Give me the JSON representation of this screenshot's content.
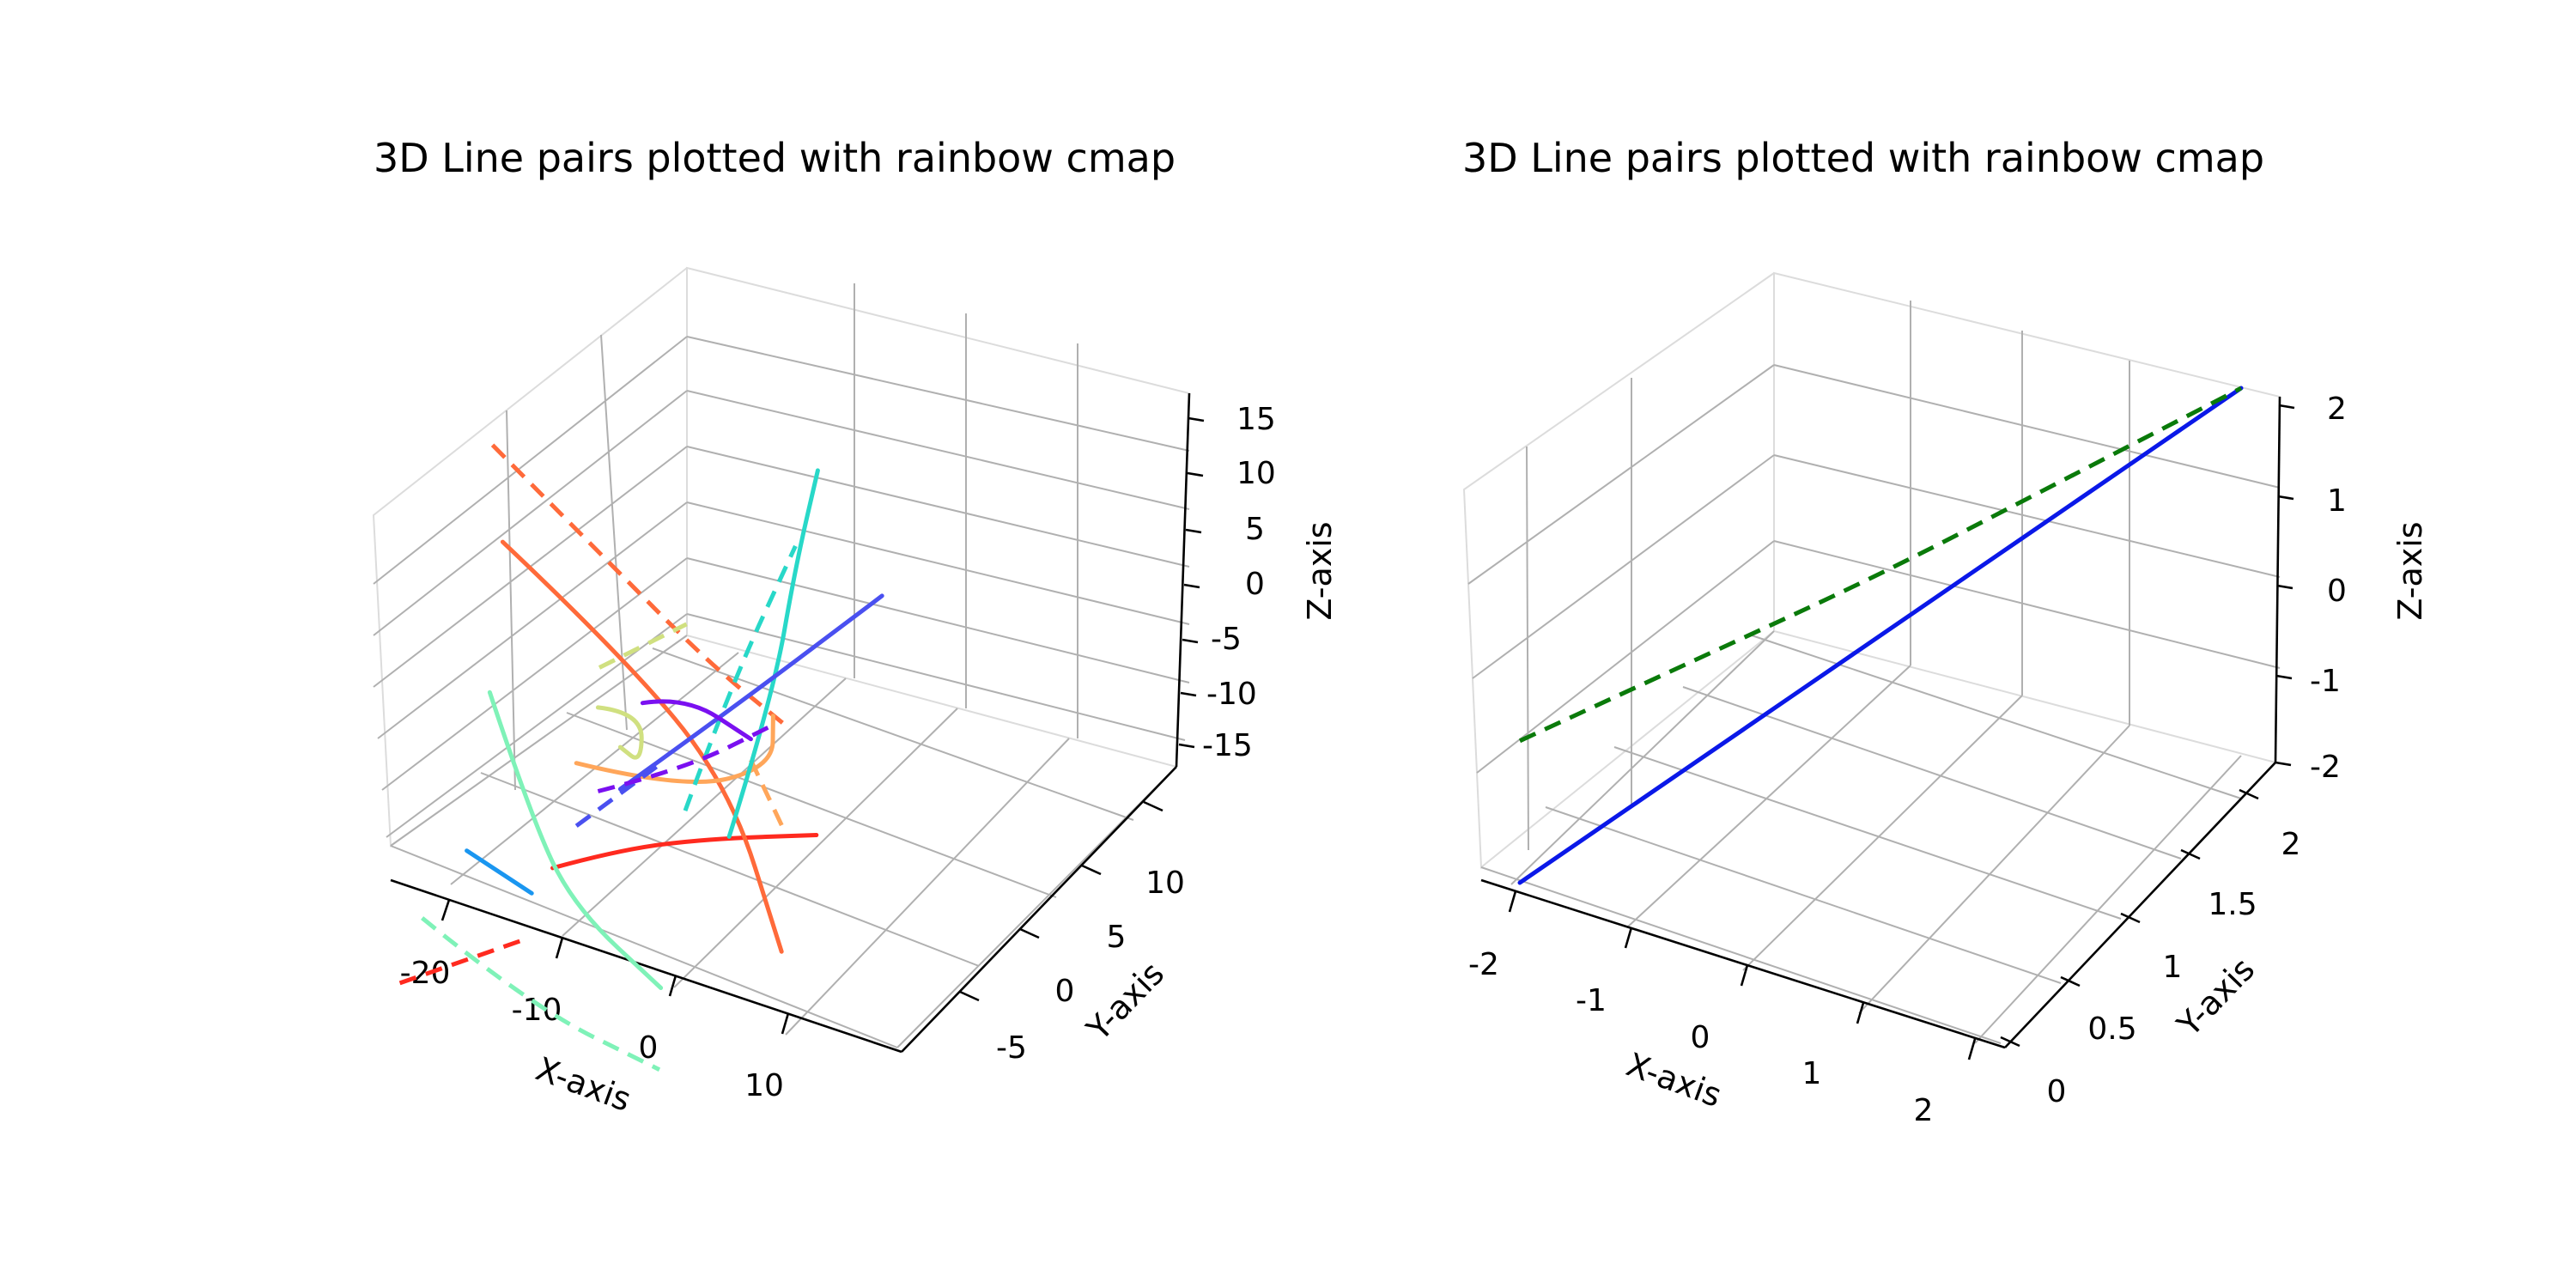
{
  "chart_data": [
    {
      "type": "line3d",
      "title": "3D Line pairs plotted with rainbow cmap",
      "xlabel": "X-axis",
      "ylabel": "Y-axis",
      "zlabel": "Z-axis",
      "xticks": [
        -20,
        -10,
        0,
        10
      ],
      "yticks": [
        -5,
        0,
        5,
        10
      ],
      "zticks": [
        15,
        10,
        5,
        0,
        -5,
        -10,
        -15
      ],
      "xlim": [
        -25,
        18
      ],
      "ylim": [
        -8,
        15
      ],
      "zlim": [
        -18,
        18
      ],
      "grid": true,
      "series": [
        {
          "color": "#ff2a1f",
          "style": "solid",
          "points": [
            [
              -4,
              -4,
              -6
            ],
            [
              -2,
              0,
              -8
            ],
            [
              2,
              4,
              -10
            ],
            [
              8,
              8,
              -12
            ]
          ]
        },
        {
          "color": "#ff2a1f",
          "style": "dashed",
          "points": [
            [
              -14,
              -8,
              -16
            ],
            [
              -7,
              -4,
              -14
            ]
          ]
        },
        {
          "color": "#ff6a3a",
          "style": "solid",
          "points": [
            [
              -21,
              8,
              6
            ],
            [
              -8,
              6,
              2
            ],
            [
              4,
              4,
              -4
            ],
            [
              12,
              1,
              -14
            ]
          ]
        },
        {
          "color": "#ff6a3a",
          "style": "dashed",
          "points": [
            [
              -24,
              10,
              12
            ],
            [
              -12,
              8,
              8
            ],
            [
              0,
              6,
              4
            ],
            [
              8,
              5,
              2
            ]
          ]
        },
        {
          "color": "#ffa65a",
          "style": "solid",
          "points": [
            [
              -8,
              2,
              -4
            ],
            [
              0,
              4,
              -6
            ],
            [
              6,
              6,
              -4
            ],
            [
              4,
              8,
              -2
            ]
          ]
        },
        {
          "color": "#ffa65a",
          "style": "dashed",
          "points": [
            [
              4,
              6,
              -4
            ],
            [
              8,
              5,
              -8
            ]
          ]
        },
        {
          "color": "#d0e080",
          "style": "solid",
          "points": [
            [
              -6,
              2,
              2
            ],
            [
              -4,
              4,
              0
            ],
            [
              -2,
              2,
              -2
            ],
            [
              -6,
              4,
              -4
            ]
          ]
        },
        {
          "color": "#d0e080",
          "style": "dashed",
          "points": [
            [
              -10,
              6,
              0
            ],
            [
              -4,
              8,
              4
            ]
          ]
        },
        {
          "color": "#7ff2b8",
          "style": "solid",
          "points": [
            [
              -16,
              2,
              0
            ],
            [
              -10,
              0,
              -8
            ],
            [
              -4,
              -2,
              -12
            ],
            [
              6,
              -4,
              -14
            ]
          ]
        },
        {
          "color": "#7ff2b8",
          "style": "dashed",
          "points": [
            [
              -14,
              -6,
              -12
            ],
            [
              -2,
              -8,
              -14
            ],
            [
              10,
              -8,
              -16
            ]
          ]
        },
        {
          "color": "#28d8c8",
          "style": "solid",
          "points": [
            [
              2,
              6,
              -12
            ],
            [
              4,
              8,
              0
            ],
            [
              4,
              10,
              10
            ],
            [
              4,
              12,
              17
            ]
          ]
        },
        {
          "color": "#28d8c8",
          "style": "dashed",
          "points": [
            [
              0,
              4,
              -8
            ],
            [
              2,
              6,
              2
            ],
            [
              4,
              10,
              12
            ]
          ]
        },
        {
          "color": "#1a96f0",
          "style": "solid",
          "points": [
            [
              -14,
              -2,
              -10
            ],
            [
              -8,
              -2,
              -12
            ]
          ]
        },
        {
          "color": "#4a50f0",
          "style": "solid",
          "points": [
            [
              -6,
              4,
              -8
            ],
            [
              2,
              6,
              0
            ],
            [
              12,
              10,
              10
            ]
          ]
        },
        {
          "color": "#4a50f0",
          "style": "dashed",
          "points": [
            [
              -8,
              2,
              -10
            ],
            [
              -2,
              4,
              -4
            ]
          ]
        },
        {
          "color": "#7a10f0",
          "style": "solid",
          "points": [
            [
              -6,
              6,
              -2
            ],
            [
              -2,
              6,
              0
            ],
            [
              4,
              6,
              -2
            ]
          ]
        },
        {
          "color": "#7a10f0",
          "style": "dashed",
          "points": [
            [
              -6,
              2,
              -6
            ],
            [
              0,
              4,
              -4
            ],
            [
              6,
              6,
              0
            ]
          ]
        }
      ]
    },
    {
      "type": "line3d",
      "title": "3D Line pairs plotted with rainbow cmap",
      "xlabel": "X-axis",
      "ylabel": "Y-axis",
      "zlabel": "Z-axis",
      "xticks": [
        -2,
        -1,
        0,
        1,
        2
      ],
      "yticks": [
        0.0,
        0.5,
        1.0,
        1.5,
        2.0
      ],
      "zticks": [
        2,
        1,
        0,
        -1,
        -2
      ],
      "xlim": [
        -2.2,
        2.2
      ],
      "ylim": [
        -0.1,
        2.1
      ],
      "zlim": [
        -2,
        2
      ],
      "grid": true,
      "series": [
        {
          "color": "#0a18e8",
          "style": "solid",
          "points": [
            [
              -2,
              0,
              -2
            ],
            [
              -1,
              0.5,
              -1
            ],
            [
              0,
              1,
              0
            ],
            [
              1,
              1.5,
              1
            ],
            [
              2,
              2,
              2
            ]
          ]
        },
        {
          "color": "#0a7a0a",
          "style": "dashed",
          "points": [
            [
              -2,
              0,
              -0.6
            ],
            [
              -1,
              0.5,
              0
            ],
            [
              0,
              1,
              0.6
            ],
            [
              1,
              1.5,
              1.3
            ],
            [
              2,
              2,
              2
            ]
          ]
        }
      ]
    }
  ]
}
